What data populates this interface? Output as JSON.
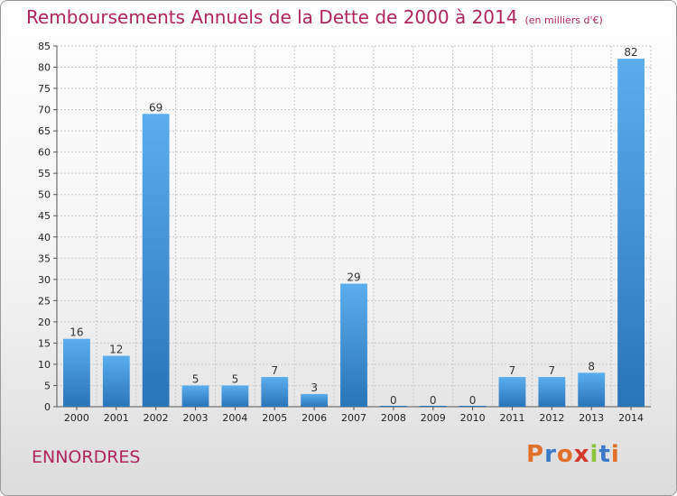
{
  "title": "Remboursements Annuels de la Dette de 2000 à 2014",
  "unit_note": "(en milliers d'€)",
  "commune": "ENNORDRES",
  "logo": {
    "text": "Proxiti",
    "colors": [
      "#e0702a",
      "#3a78c8",
      "#e0702a",
      "#d33a2c",
      "#8cc43c",
      "#3a78c8",
      "#e0702a"
    ]
  },
  "chart_data": {
    "type": "bar",
    "categories": [
      "2000",
      "2001",
      "2002",
      "2003",
      "2004",
      "2005",
      "2006",
      "2007",
      "2008",
      "2009",
      "2010",
      "2011",
      "2012",
      "2013",
      "2014"
    ],
    "values": [
      16,
      12,
      69,
      5,
      5,
      7,
      3,
      29,
      0,
      0,
      0,
      7,
      7,
      8,
      82
    ],
    "ylim": [
      0,
      85
    ],
    "yticks": [
      0,
      5,
      10,
      15,
      20,
      25,
      30,
      35,
      40,
      45,
      50,
      55,
      60,
      65,
      70,
      75,
      80,
      85
    ],
    "grid": true,
    "bar_color": "#3d8fd8"
  }
}
